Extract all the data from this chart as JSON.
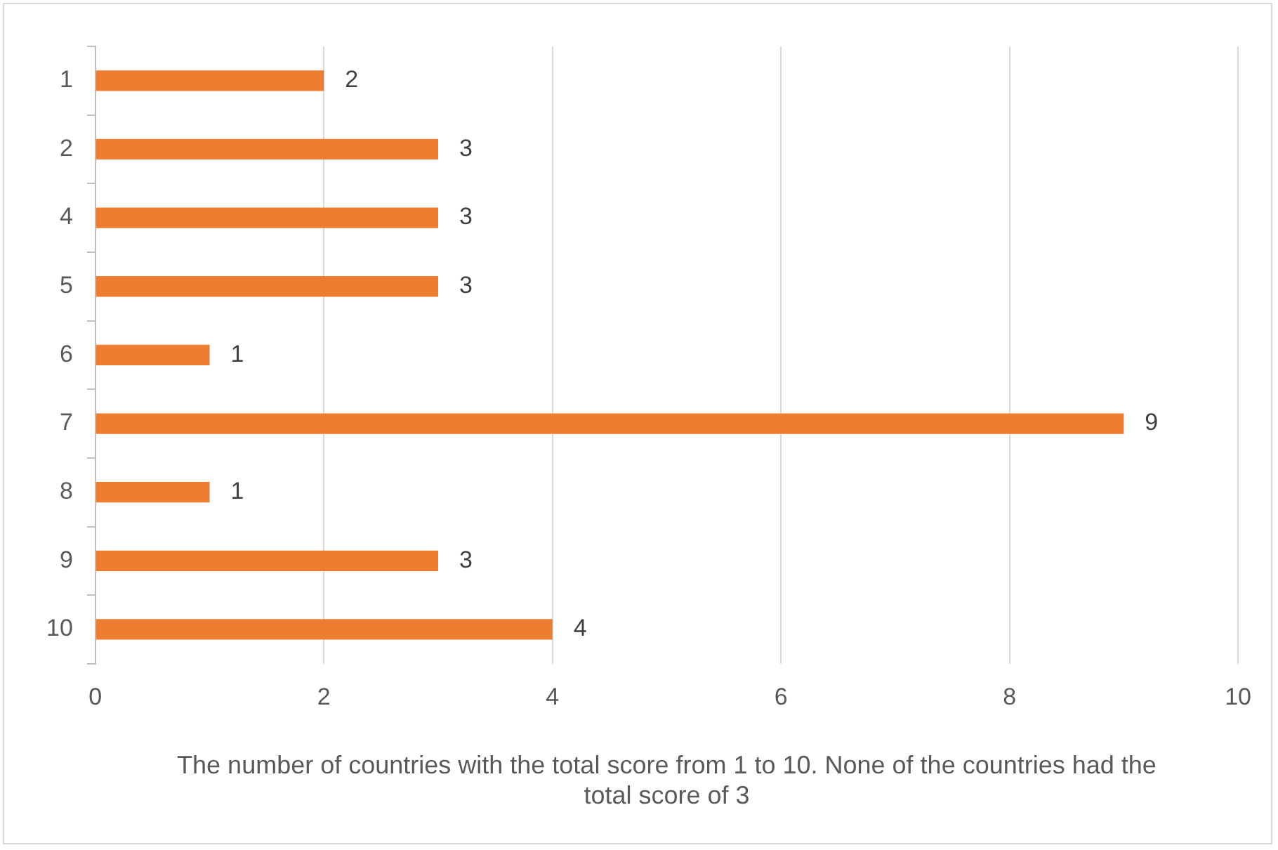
{
  "chart_data": {
    "type": "bar",
    "orientation": "horizontal",
    "xlabel": "The number of countries with the total score from 1 to 10. None of the countries had the total score of 3",
    "categories": [
      "1",
      "2",
      "4",
      "5",
      "6",
      "7",
      "8",
      "9",
      "10"
    ],
    "values": [
      2,
      3,
      3,
      3,
      1,
      9,
      1,
      3,
      4
    ],
    "color": "#ed7d31",
    "xlim": [
      0,
      10
    ],
    "xticks": [
      0,
      2,
      4,
      6,
      8,
      10
    ],
    "grid": "x",
    "legend": false,
    "data_labels": true
  }
}
